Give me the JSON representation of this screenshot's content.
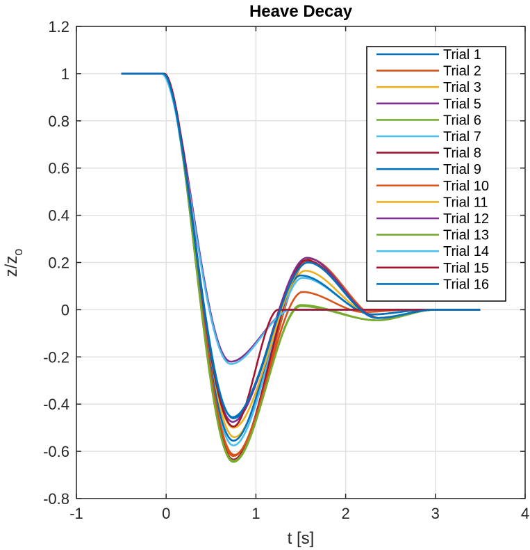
{
  "chart_data": {
    "type": "line",
    "title": "Heave Decay",
    "xlabel": "t [s]",
    "ylabel_main": "z/z",
    "ylabel_sub": "o",
    "xlim": [
      -1,
      4
    ],
    "ylim": [
      -0.8,
      1.2
    ],
    "xticks": [
      -1,
      0,
      1,
      2,
      3,
      4
    ],
    "xtick_labels": [
      "-1",
      "0",
      "1",
      "2",
      "3",
      "4"
    ],
    "yticks": [
      -0.8,
      -0.6,
      -0.4,
      -0.2,
      0,
      0.2,
      0.4,
      0.6,
      0.8,
      1,
      1.2
    ],
    "ytick_labels": [
      "-0.8",
      "-0.6",
      "-0.4",
      "-0.2",
      "0",
      "0.2",
      "0.4",
      "0.6",
      "0.8",
      "1",
      "1.2"
    ],
    "grid": true,
    "legend_position": "top-right",
    "series": [
      {
        "name": "Trial 1",
        "color": "#0072BD",
        "t_start": -0.5,
        "t0": -0.03,
        "fall": 0.78,
        "min_t": 0.75,
        "min_v": -0.46,
        "peak_t": 1.58,
        "peak_v": 0.205,
        "trough_t": 2.35,
        "trough_v": -0.035,
        "settle_t": 3.0
      },
      {
        "name": "Trial 2",
        "color": "#D95319",
        "t_start": -0.5,
        "t0": -0.02,
        "fall": 0.8,
        "min_t": 0.75,
        "min_v": -0.62,
        "peak_t": 1.6,
        "peak_v": 0.215,
        "trough_t": 2.38,
        "trough_v": -0.035,
        "settle_t": 3.0
      },
      {
        "name": "Trial 3",
        "color": "#EDB120",
        "t_start": -0.5,
        "t0": -0.02,
        "fall": 0.8,
        "min_t": 0.76,
        "min_v": -0.54,
        "peak_t": 1.55,
        "peak_v": 0.165,
        "trough_t": 2.3,
        "trough_v": -0.02,
        "settle_t": 2.9
      },
      {
        "name": "Trial 5",
        "color": "#7E2F8E",
        "t_start": -0.5,
        "t0": -0.04,
        "fall": 0.72,
        "min_t": 0.72,
        "min_v": -0.22,
        "peak_t": 1.4,
        "peak_v": 0.0,
        "trough_t": 1.8,
        "trough_v": 0.0,
        "settle_t": 2.0
      },
      {
        "name": "Trial 6",
        "color": "#77AC30",
        "t_start": -0.5,
        "t0": -0.02,
        "fall": 0.8,
        "min_t": 0.75,
        "min_v": -0.645,
        "peak_t": 1.5,
        "peak_v": 0.02,
        "trough_t": 2.35,
        "trough_v": -0.045,
        "settle_t": 3.0
      },
      {
        "name": "Trial 7",
        "color": "#4DBEEE",
        "t_start": -0.5,
        "t0": -0.03,
        "fall": 0.78,
        "min_t": 0.75,
        "min_v": -0.575,
        "peak_t": 1.52,
        "peak_v": 0.135,
        "trough_t": 2.3,
        "trough_v": -0.02,
        "settle_t": 2.9
      },
      {
        "name": "Trial 8",
        "color": "#A2142F",
        "t_start": -0.5,
        "t0": -0.02,
        "fall": 0.8,
        "min_t": 0.75,
        "min_v": -0.635,
        "peak_t": 1.56,
        "peak_v": 0.21,
        "trough_t": 2.36,
        "trough_v": -0.035,
        "settle_t": 3.0
      },
      {
        "name": "Trial 9",
        "color": "#0072BD",
        "t_start": -0.5,
        "t0": -0.03,
        "fall": 0.78,
        "min_t": 0.75,
        "min_v": -0.555,
        "peak_t": 1.5,
        "peak_v": 0.145,
        "trough_t": 2.3,
        "trough_v": -0.02,
        "settle_t": 2.9
      },
      {
        "name": "Trial 10",
        "color": "#D95319",
        "t_start": -0.5,
        "t0": -0.02,
        "fall": 0.8,
        "min_t": 0.76,
        "min_v": -0.615,
        "peak_t": 1.52,
        "peak_v": 0.075,
        "trough_t": 2.2,
        "trough_v": -0.01,
        "settle_t": 2.7
      },
      {
        "name": "Trial 11",
        "color": "#EDB120",
        "t_start": -0.5,
        "t0": -0.03,
        "fall": 0.78,
        "min_t": 0.75,
        "min_v": -0.5,
        "peak_t": 1.58,
        "peak_v": 0.2,
        "trough_t": 2.35,
        "trough_v": -0.035,
        "settle_t": 3.0
      },
      {
        "name": "Trial 12",
        "color": "#7E2F8E",
        "t_start": -0.5,
        "t0": -0.03,
        "fall": 0.78,
        "min_t": 0.74,
        "min_v": -0.475,
        "peak_t": 1.57,
        "peak_v": 0.22,
        "trough_t": 2.36,
        "trough_v": -0.035,
        "settle_t": 3.0
      },
      {
        "name": "Trial 13",
        "color": "#77AC30",
        "t_start": -0.5,
        "t0": -0.02,
        "fall": 0.8,
        "min_t": 0.75,
        "min_v": -0.64,
        "peak_t": 1.5,
        "peak_v": 0.015,
        "trough_t": 2.35,
        "trough_v": -0.045,
        "settle_t": 3.0
      },
      {
        "name": "Trial 14",
        "color": "#4DBEEE",
        "t_start": -0.5,
        "t0": -0.05,
        "fall": 0.7,
        "min_t": 0.72,
        "min_v": -0.23,
        "peak_t": 1.4,
        "peak_v": 0.0,
        "trough_t": 1.8,
        "trough_v": 0.0,
        "settle_t": 2.0
      },
      {
        "name": "Trial 15",
        "color": "#A2142F",
        "t_start": -0.5,
        "t0": -0.02,
        "fall": 0.8,
        "min_t": 0.75,
        "min_v": -0.495,
        "peak_t": 1.25,
        "peak_v": 0.0,
        "trough_t": 1.6,
        "trough_v": 0.0,
        "settle_t": 1.8
      },
      {
        "name": "Trial 16",
        "color": "#0072BD",
        "t_start": -0.5,
        "t0": -0.03,
        "fall": 0.78,
        "min_t": 0.74,
        "min_v": -0.455,
        "peak_t": 1.58,
        "peak_v": 0.2,
        "trough_t": 2.35,
        "trough_v": -0.035,
        "settle_t": 3.0
      }
    ],
    "t_end": 3.5
  }
}
